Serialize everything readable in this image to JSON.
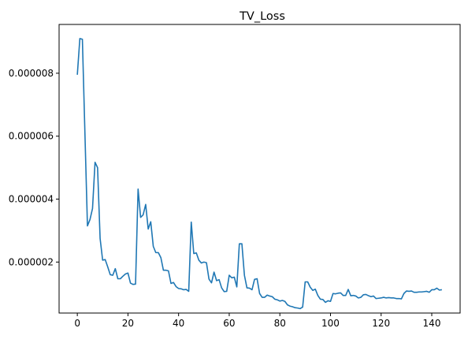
{
  "chart_data": {
    "type": "line",
    "title": "TV_Loss",
    "xlabel": "",
    "ylabel": "",
    "xlim": [
      -7.2,
      151.2
    ],
    "ylim": [
      3.8e-07,
      9.55e-06
    ],
    "x_ticks": [
      0,
      20,
      40,
      60,
      80,
      100,
      120,
      140
    ],
    "x_tick_labels": [
      "0",
      "20",
      "40",
      "60",
      "80",
      "100",
      "120",
      "140"
    ],
    "y_ticks": [
      2e-06,
      4e-06,
      6e-06,
      8e-06
    ],
    "y_tick_labels": [
      "0.000002",
      "0.000004",
      "0.000006",
      "0.000008"
    ],
    "grid": false,
    "legend": "none",
    "colors": {
      "line": "#1f77b4",
      "axes": "#000000",
      "background": "#ffffff"
    },
    "series": [
      {
        "values": [
          7.95e-06,
          9.1e-06,
          9.08e-06,
          6.1e-06,
          3.15e-06,
          3.35e-06,
          3.7e-06,
          5.17e-06,
          5e-06,
          2.75e-06,
          2.06e-06,
          2.08e-06,
          1.85e-06,
          1.6e-06,
          1.58e-06,
          1.79e-06,
          1.47e-06,
          1.47e-06,
          1.55e-06,
          1.62e-06,
          1.65e-06,
          1.33e-06,
          1.29e-06,
          1.3e-06,
          4.32e-06,
          3.42e-06,
          3.5e-06,
          3.83e-06,
          3.05e-06,
          3.28e-06,
          2.5e-06,
          2.3e-06,
          2.3e-06,
          2.14e-06,
          1.74e-06,
          1.74e-06,
          1.72e-06,
          1.32e-06,
          1.35e-06,
          1.22e-06,
          1.16e-06,
          1.15e-06,
          1.12e-06,
          1.13e-06,
          1.07e-06,
          3.27e-06,
          2.27e-06,
          2.29e-06,
          2.06e-06,
          1.97e-06,
          2e-06,
          1.98e-06,
          1.46e-06,
          1.34e-06,
          1.68e-06,
          1.41e-06,
          1.44e-06,
          1.18e-06,
          1.06e-06,
          1.07e-06,
          1.58e-06,
          1.5e-06,
          1.52e-06,
          1.21e-06,
          2.58e-06,
          2.58e-06,
          1.58e-06,
          1.18e-06,
          1.17e-06,
          1.12e-06,
          1.45e-06,
          1.47e-06,
          1e-06,
          8.8e-07,
          8.8e-07,
          9.5e-07,
          9.2e-07,
          9e-07,
          8.2e-07,
          8e-07,
          7.6e-07,
          7.8e-07,
          7.5e-07,
          6.4e-07,
          6e-07,
          5.8e-07,
          5.5e-07,
          5.4e-07,
          5.2e-07,
          5.7e-07,
          1.37e-06,
          1.37e-06,
          1.2e-06,
          1.1e-06,
          1.14e-06,
          9.4e-07,
          8.2e-07,
          8.1e-07,
          7.2e-07,
          7.7e-07,
          7.5e-07,
          1e-06,
          9.9e-07,
          1.01e-06,
          1.02e-06,
          9.4e-07,
          9.4e-07,
          1.13e-06,
          9.3e-07,
          9.4e-07,
          9.2e-07,
          8.6e-07,
          8.8e-07,
          9.6e-07,
          9.7e-07,
          9.3e-07,
          9e-07,
          9.2e-07,
          8.4e-07,
          8.5e-07,
          8.6e-07,
          8.8e-07,
          8.6e-07,
          8.7e-07,
          8.6e-07,
          8.6e-07,
          8.4e-07,
          8.4e-07,
          8.3e-07,
          1e-06,
          1.08e-06,
          1.07e-06,
          1.08e-06,
          1.04e-06,
          1.04e-06,
          1.05e-06,
          1.05e-06,
          1.06e-06,
          1.07e-06,
          1.04e-06,
          1.12e-06,
          1.12e-06,
          1.17e-06,
          1.11e-06,
          1.12e-06
        ]
      }
    ]
  }
}
